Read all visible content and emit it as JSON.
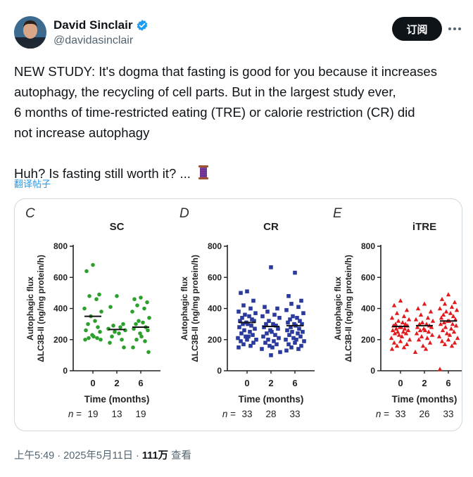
{
  "author": {
    "name": "David Sinclair",
    "handle": "@davidasinclair",
    "verified": true,
    "verified_color": "#1d9bf0"
  },
  "subscribe_label": "订阅",
  "tweet": {
    "lines_para1": [
      "NEW STUDY: It's dogma that fasting is good for you because it increases",
      "autophagy, the recycling of cell parts. But in the largest study ever,",
      "6 months of time-restricted eating (TRE) or calorie restriction (CR) did",
      "not increase autophagy"
    ],
    "line_para2": "Huh? Is fasting still worth it? ...",
    "thread_icon": "spool-of-thread-emoji"
  },
  "translate_label": "翻译帖子",
  "meta": {
    "time": "上午5:49",
    "separator": "·",
    "date": "2025年5月11日",
    "views_count": "111万",
    "views_label": "查看"
  },
  "chart_data": [
    {
      "type": "scatter",
      "panel_letter": "C",
      "title": "SC",
      "color": "#2ca02c",
      "marker": "circle",
      "ylabel_line1": "Autophagic flux",
      "ylabel_line2": "ΔLC3B-II (ng/mg protein/h)",
      "xlabel": "Time (months)",
      "categories": [
        "0",
        "2",
        "6"
      ],
      "yticks": [
        "0",
        "200",
        "400",
        "600",
        "800"
      ],
      "ylim": [
        0,
        800
      ],
      "n_prefix": "n",
      "n_values": [
        "19",
        "13",
        "19"
      ],
      "means": [
        350,
        265,
        280
      ],
      "series": [
        {
          "name": "0",
          "values": [
            680,
            640,
            490,
            480,
            460,
            400,
            380,
            350,
            320,
            300,
            280,
            260,
            250,
            230,
            220,
            210,
            210,
            200,
            200
          ]
        },
        {
          "name": "2",
          "values": [
            480,
            410,
            300,
            290,
            280,
            270,
            260,
            250,
            240,
            220,
            200,
            180,
            150
          ]
        },
        {
          "name": "6",
          "values": [
            470,
            460,
            440,
            420,
            400,
            380,
            340,
            320,
            310,
            300,
            280,
            270,
            260,
            240,
            220,
            200,
            190,
            150,
            120
          ]
        }
      ]
    },
    {
      "type": "scatter",
      "panel_letter": "D",
      "title": "CR",
      "color": "#2b3a9e",
      "marker": "square",
      "ylabel_line1": "Autophagic flux",
      "ylabel_line2": "ΔLC3B-II (ng/mg protein/h)",
      "xlabel": "Time (months)",
      "categories": [
        "0",
        "2",
        "6"
      ],
      "yticks": [
        "0",
        "200",
        "400",
        "600",
        "800"
      ],
      "ylim": [
        0,
        800
      ],
      "n_prefix": "n",
      "n_values": [
        "33",
        "28",
        "33"
      ],
      "means": [
        310,
        285,
        290
      ],
      "series": [
        {
          "name": "0",
          "values": [
            510,
            500,
            450,
            420,
            400,
            380,
            370,
            360,
            350,
            340,
            330,
            320,
            320,
            310,
            300,
            300,
            290,
            280,
            270,
            260,
            250,
            240,
            230,
            220,
            220,
            210,
            200,
            200,
            190,
            180,
            170,
            160,
            150
          ]
        },
        {
          "name": "2",
          "values": [
            665,
            410,
            400,
            380,
            360,
            350,
            340,
            320,
            300,
            300,
            290,
            280,
            270,
            260,
            250,
            240,
            230,
            220,
            210,
            200,
            190,
            180,
            170,
            160,
            150,
            140,
            120,
            100
          ]
        },
        {
          "name": "6",
          "values": [
            630,
            480,
            450,
            430,
            410,
            390,
            370,
            350,
            340,
            330,
            320,
            310,
            300,
            300,
            290,
            280,
            270,
            260,
            250,
            250,
            240,
            230,
            220,
            210,
            200,
            200,
            190,
            180,
            170,
            160,
            150,
            140,
            130
          ]
        }
      ]
    },
    {
      "type": "scatter",
      "panel_letter": "E",
      "title": "iTRE",
      "color": "#e31a1c",
      "marker": "triangle",
      "ylabel_line1": "Autophagic flux",
      "ylabel_line2": "ΔLC3B-II (ng/mg protein/h)",
      "xlabel": "Time (months)",
      "categories": [
        "0",
        "2",
        "6"
      ],
      "yticks": [
        "0",
        "200",
        "400",
        "600",
        "800"
      ],
      "ylim": [
        0,
        800
      ],
      "n_prefix": "n",
      "n_values": [
        "33",
        "26",
        "33"
      ],
      "means": [
        285,
        290,
        320
      ],
      "series": [
        {
          "name": "0",
          "values": [
            450,
            420,
            390,
            370,
            350,
            340,
            330,
            320,
            310,
            300,
            300,
            290,
            290,
            280,
            280,
            270,
            270,
            260,
            260,
            250,
            250,
            240,
            240,
            230,
            220,
            210,
            200,
            190,
            180,
            170,
            160,
            150,
            140
          ]
        },
        {
          "name": "2",
          "values": [
            430,
            400,
            380,
            360,
            340,
            330,
            320,
            310,
            300,
            300,
            290,
            280,
            280,
            270,
            260,
            260,
            250,
            240,
            230,
            220,
            210,
            200,
            180,
            160,
            140,
            120
          ]
        },
        {
          "name": "6",
          "values": [
            490,
            460,
            440,
            430,
            410,
            400,
            390,
            380,
            370,
            360,
            350,
            340,
            330,
            320,
            320,
            310,
            300,
            300,
            290,
            280,
            270,
            260,
            250,
            240,
            230,
            220,
            210,
            200,
            190,
            180,
            170,
            160,
            10
          ]
        }
      ]
    }
  ]
}
